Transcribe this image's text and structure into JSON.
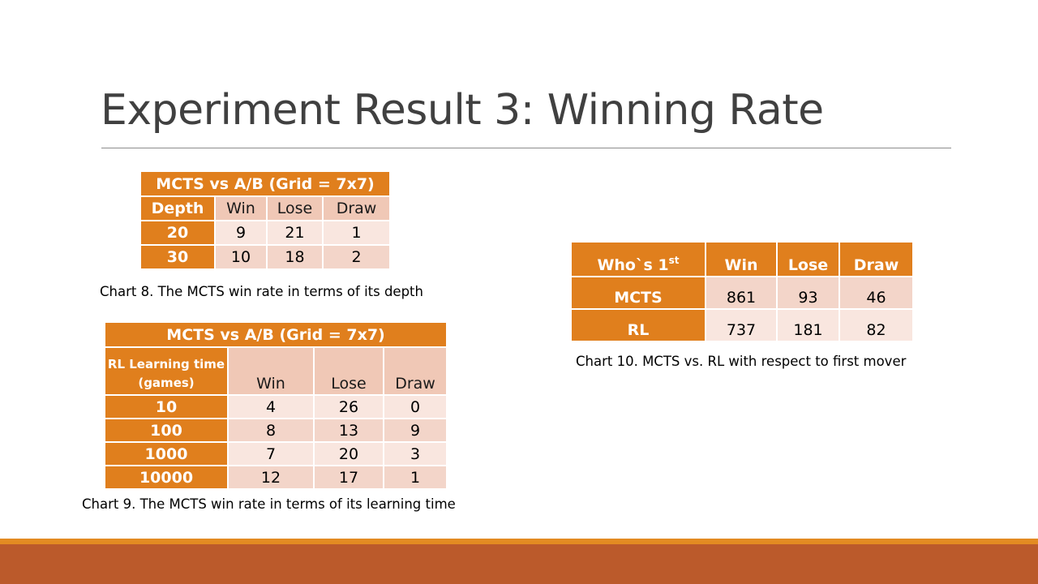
{
  "slide": {
    "title": "Experiment Result 3: Winning Rate"
  },
  "chart8": {
    "title": "MCTS vs A/B (Grid = 7x7)",
    "headers": [
      "Depth",
      "Win",
      "Lose",
      "Draw"
    ],
    "rows": [
      [
        "20",
        "9",
        "21",
        "1"
      ],
      [
        "30",
        "10",
        "18",
        "2"
      ]
    ],
    "caption": "Chart 8. The MCTS win rate in terms of its depth"
  },
  "chart9": {
    "title": "MCTS vs A/B (Grid = 7x7)",
    "headers": [
      "RL Learning time",
      "(games)",
      "Win",
      "Lose",
      "Draw"
    ],
    "rows": [
      [
        "10",
        "4",
        "26",
        "0"
      ],
      [
        "100",
        "8",
        "13",
        "9"
      ],
      [
        "1000",
        "7",
        "20",
        "3"
      ],
      [
        "10000",
        "12",
        "17",
        "1"
      ]
    ],
    "caption": "Chart 9. The MCTS win rate in terms of its learning time"
  },
  "chart10": {
    "headers": [
      "Who`s 1",
      "st",
      "Win",
      "Lose",
      "Draw"
    ],
    "rows": [
      [
        "MCTS",
        "861",
        "93",
        "46"
      ],
      [
        "RL",
        "737",
        "181",
        "82"
      ]
    ],
    "caption": "Chart 10. MCTS vs. RL with respect to first mover"
  },
  "colors": {
    "accent_orange": "#e07f1d",
    "cell_light": "#f9e6df",
    "cell_dark": "#f3d5c9",
    "header_pink": "#f0c8b6",
    "band_rust": "#bb5a2b",
    "band_orange": "#e38b22",
    "title_gray": "#404040"
  }
}
